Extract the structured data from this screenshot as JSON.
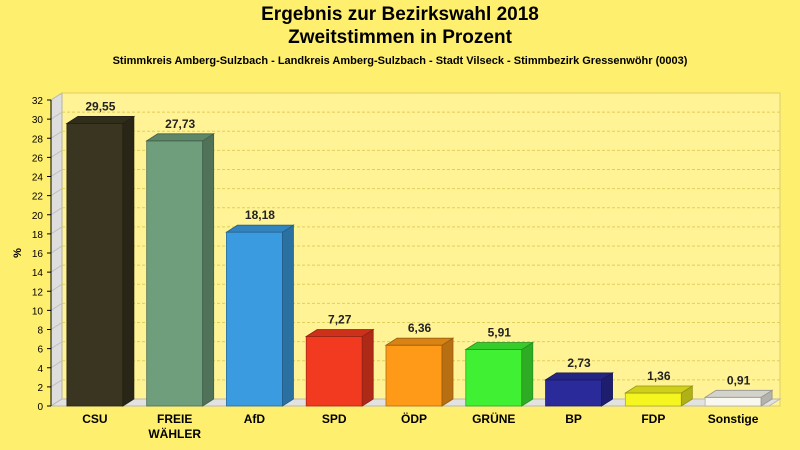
{
  "header": {
    "title": "Ergebnis zur Bezirkswahl 2018",
    "subtitle": "Zweitstimmen in Prozent",
    "caption": "Stimmkreis Amberg-Sulzbach - Landkreis Amberg-Sulzbach - Stadt Vilseck - Stimmbezirk Gressenwöhr (0003)"
  },
  "chart_data": {
    "type": "bar",
    "title": "Ergebnis zur Bezirkswahl 2018",
    "subtitle": "Zweitstimmen in Prozent",
    "ylabel": "%",
    "ylim": [
      0,
      32
    ],
    "yticks": [
      0,
      2,
      4,
      6,
      8,
      10,
      12,
      14,
      16,
      18,
      20,
      22,
      24,
      26,
      28,
      30,
      32
    ],
    "grid": true,
    "categories": [
      "CSU",
      "FREIE WÄHLER",
      "AfD",
      "SPD",
      "ÖDP",
      "GRÜNE",
      "BP",
      "FDP",
      "Sonstige"
    ],
    "category_lines": [
      [
        "CSU"
      ],
      [
        "FREIE",
        "WÄHLER"
      ],
      [
        "AfD"
      ],
      [
        "SPD"
      ],
      [
        "ÖDP"
      ],
      [
        "GRÜNE"
      ],
      [
        "BP"
      ],
      [
        "FDP"
      ],
      [
        "Sonstige"
      ]
    ],
    "values": [
      29.55,
      27.73,
      18.18,
      7.27,
      6.36,
      5.91,
      2.73,
      1.36,
      0.91
    ],
    "value_labels": [
      "29,55",
      "27,73",
      "18,18",
      "7,27",
      "6,36",
      "5,91",
      "2,73",
      "1,36",
      "0,91"
    ],
    "colors": [
      "#3a3520",
      "#6e9e7c",
      "#3a9be0",
      "#f23a20",
      "#ff9a18",
      "#40f032",
      "#2a2a9a",
      "#f5f520",
      "#f8f8f0"
    ]
  }
}
